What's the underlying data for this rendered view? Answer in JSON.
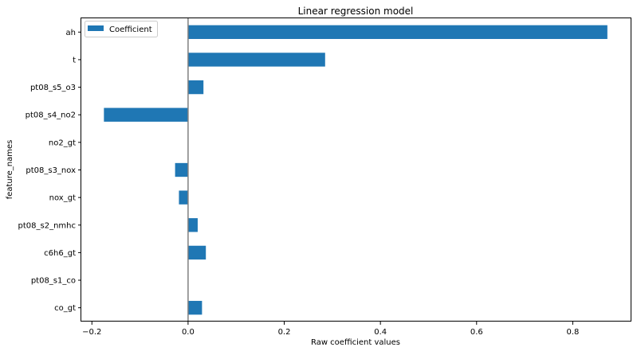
{
  "chart_data": {
    "type": "bar",
    "orientation": "horizontal",
    "title": "Linear regression model",
    "xlabel": "Raw coefficient values",
    "ylabel": "feature_names",
    "categories": [
      "co_gt",
      "pt08_s1_co",
      "c6h6_gt",
      "pt08_s2_nmhc",
      "nox_gt",
      "pt08_s3_nox",
      "no2_gt",
      "pt08_s4_no2",
      "pt08_s5_o3",
      "t",
      "ah"
    ],
    "series": [
      {
        "name": "Coefficient",
        "values": [
          0.029,
          0.001,
          0.037,
          0.02,
          -0.019,
          -0.027,
          0.0,
          -0.175,
          0.032,
          0.285,
          0.872
        ]
      }
    ],
    "xlim": [
      -0.222,
      0.922
    ],
    "xticks": [
      -0.2,
      0.0,
      0.2,
      0.4,
      0.6,
      0.8
    ],
    "xtick_labels": [
      "−0.2",
      "0.0",
      "0.2",
      "0.4",
      "0.6",
      "0.8"
    ],
    "grid": false,
    "legend_position": "upper left",
    "zero_line": true,
    "colors": {
      "bar": "#1f77b4",
      "zero_line": "#808080",
      "axes": "#000000"
    }
  }
}
